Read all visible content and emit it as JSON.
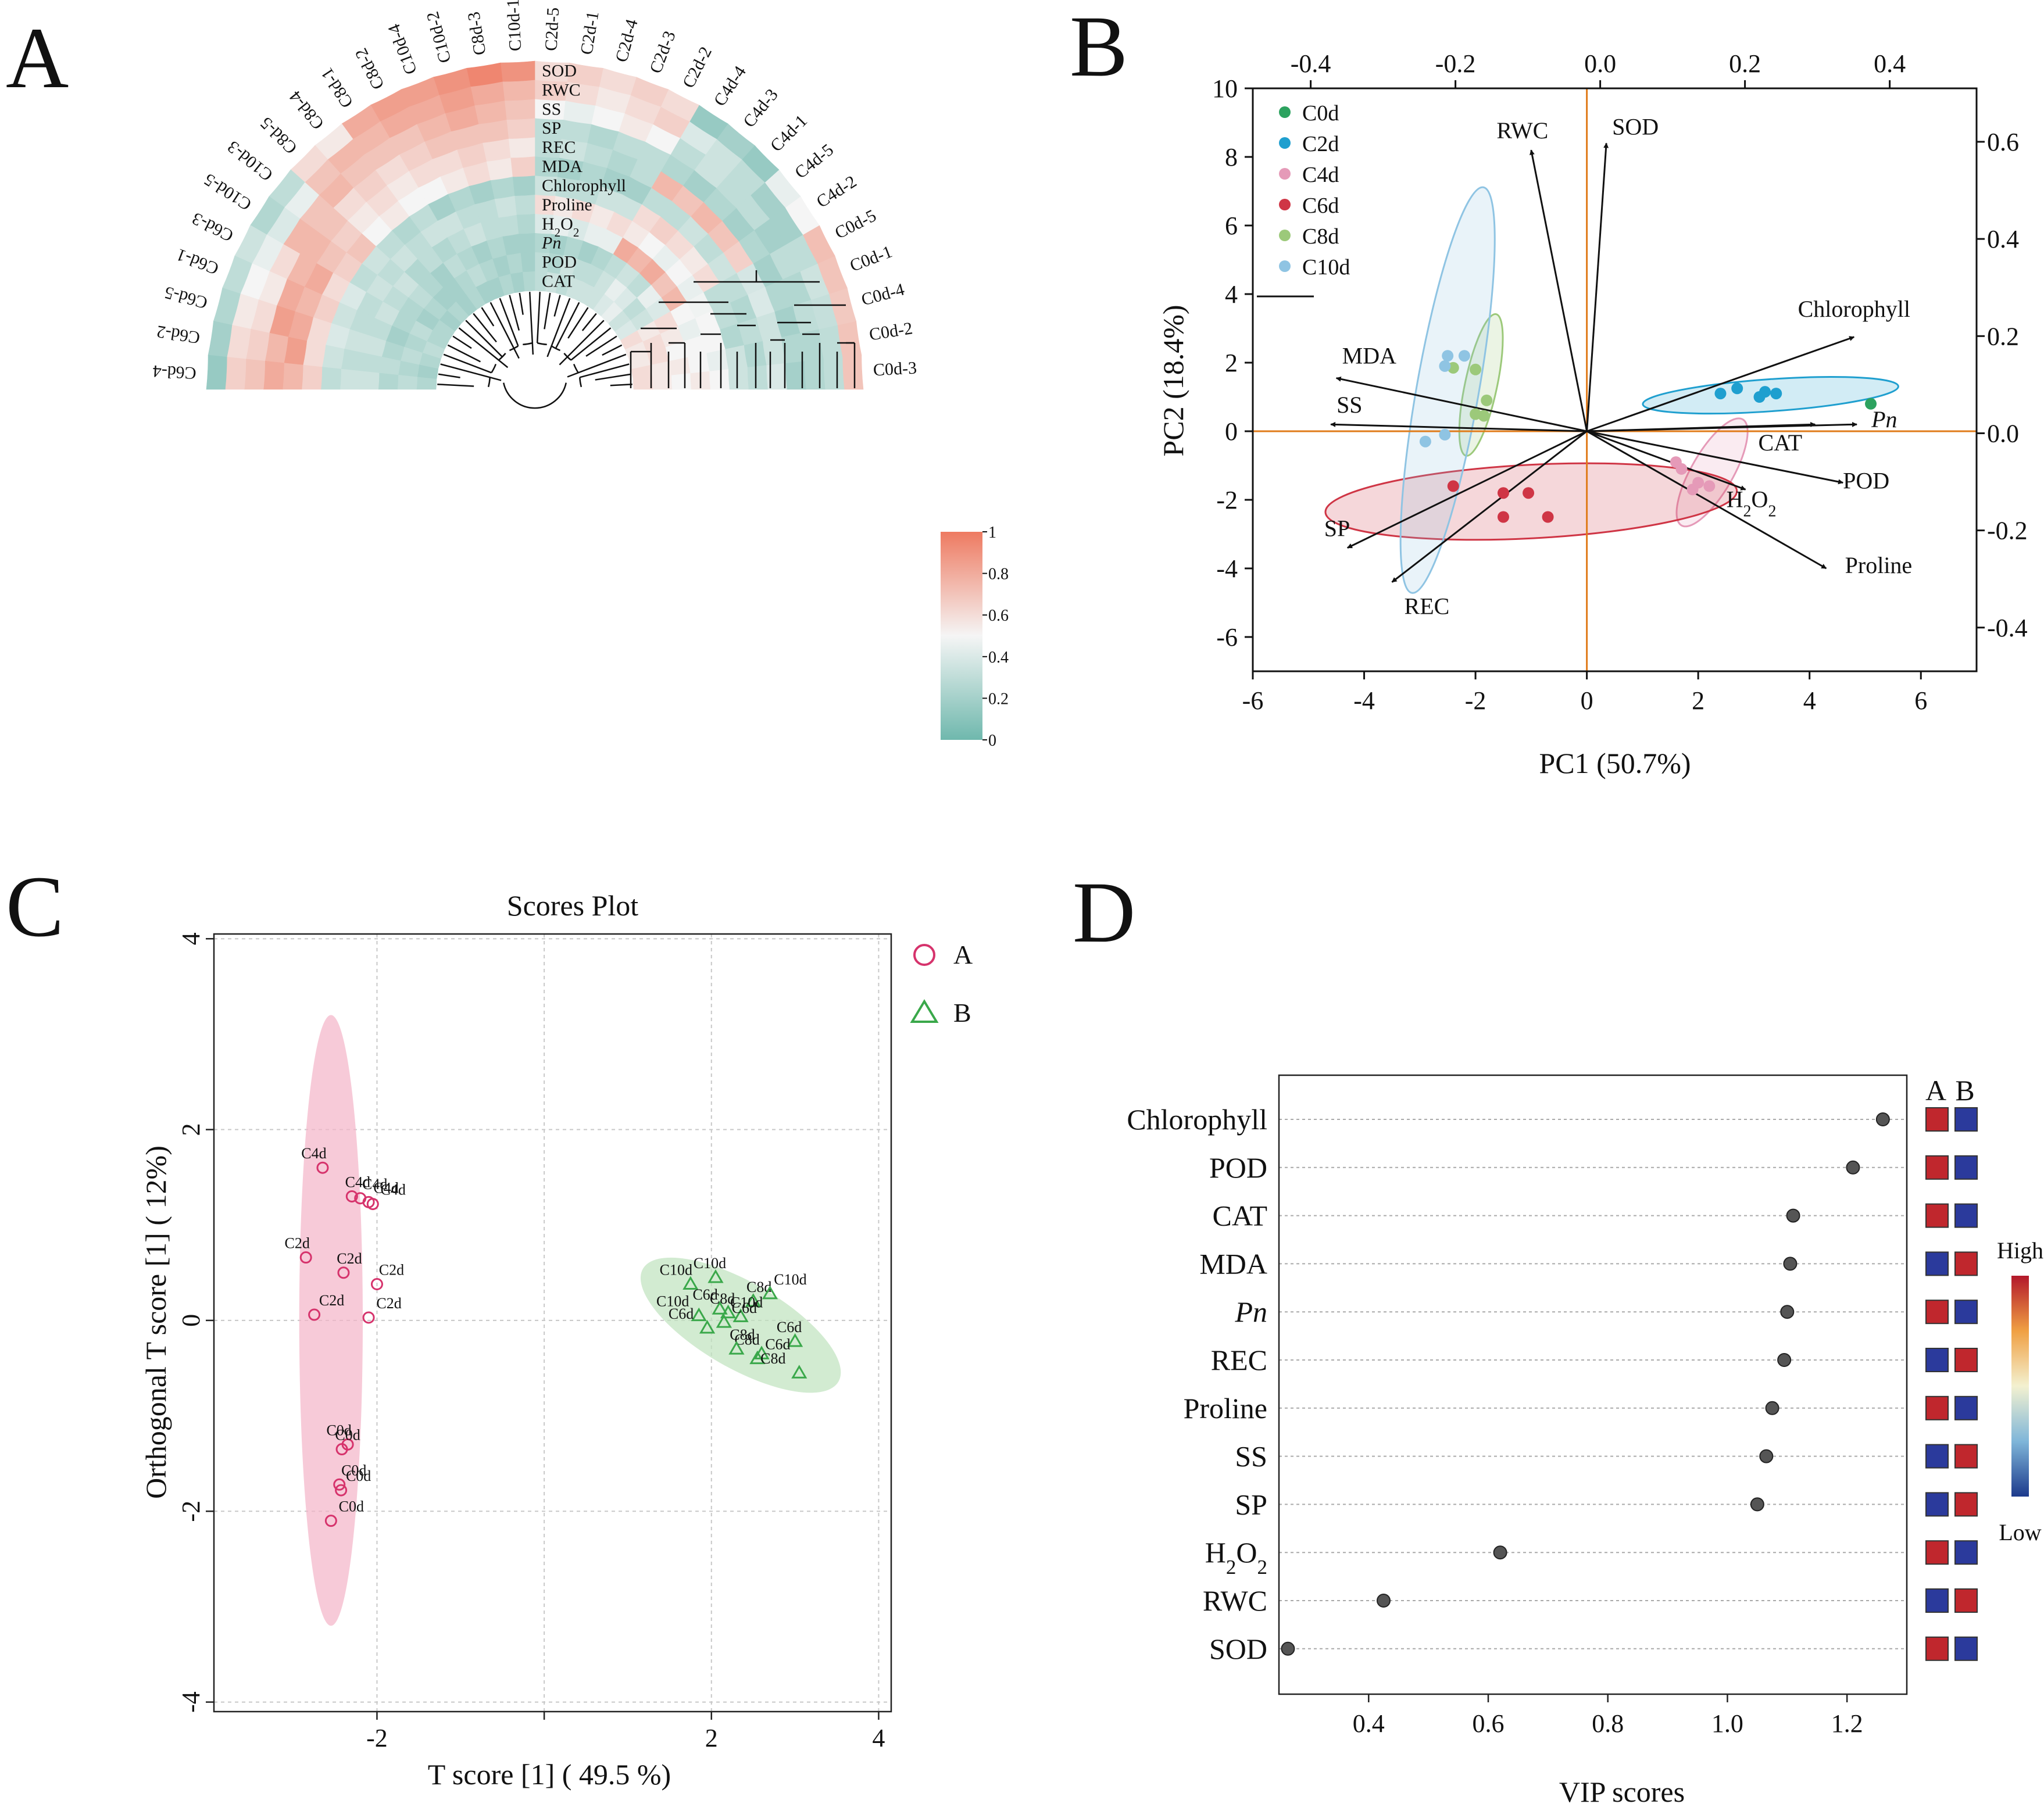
{
  "panels": {
    "A": "A",
    "B": "B",
    "C": "C",
    "D": "D"
  },
  "colors": {
    "heat_low": "#6fb8ad",
    "heat_mid": "#f5f5f5",
    "heat_high": "#ee7a61",
    "C0d": "#2ca25f",
    "C2d": "#1f9fcf",
    "C4d": "#e59ab8",
    "C6d": "#cf3545",
    "C8d": "#9cc97a",
    "C10d": "#8fc4e3",
    "origin_line": "#e07b1a",
    "groupA": "#d6336c",
    "groupB": "#3aa84a",
    "vip_dot": "#555555",
    "vip_red": "#c0272d",
    "vip_blue": "#2b3a9c"
  },
  "chart_data": [
    {
      "type": "heatmap",
      "panel": "A",
      "layout": "circular",
      "variables": [
        "SOD",
        "RWC",
        "SS",
        "SP",
        "REC",
        "MDA",
        "Chlorophyll",
        "Proline",
        "H2O2",
        "Pn",
        "POD",
        "CAT"
      ],
      "variable_labels": [
        {
          "base": "SOD"
        },
        {
          "base": "RWC"
        },
        {
          "base": "SS"
        },
        {
          "base": "SP"
        },
        {
          "base": "REC"
        },
        {
          "base": "MDA"
        },
        {
          "base": "Chlorophyll"
        },
        {
          "base": "Proline"
        },
        {
          "base": "H",
          "sub1": "2",
          "mid": "O",
          "sub2": "2"
        },
        {
          "base": "Pn",
          "italic": true
        },
        {
          "base": "POD"
        },
        {
          "base": "CAT"
        }
      ],
      "samples": [
        "C0d-3",
        "C0d-2",
        "C0d-4",
        "C0d-1",
        "C0d-5",
        "C4d-2",
        "C4d-5",
        "C4d-1",
        "C4d-3",
        "C4d-4",
        "C2d-2",
        "C2d-3",
        "C2d-4",
        "C2d-1",
        "C2d-5",
        "C10d-1",
        "C8d-3",
        "C10d-2",
        "C10d-4",
        "C8d-2",
        "C8d-1",
        "C8d-4",
        "C8d-5",
        "C10d-3",
        "C10d-5",
        "C6d-3",
        "C6d-1",
        "C6d-5",
        "C6d-2",
        "C6d-4"
      ],
      "values": [
        [
          0.7,
          0.3,
          0.25,
          0.2,
          0.4,
          0.3,
          0.35,
          0.5,
          0.55,
          0.5,
          0.55,
          0.6
        ],
        [
          0.7,
          0.3,
          0.25,
          0.25,
          0.35,
          0.25,
          0.35,
          0.45,
          0.5,
          0.55,
          0.55,
          0.6
        ],
        [
          0.68,
          0.32,
          0.3,
          0.2,
          0.35,
          0.3,
          0.25,
          0.5,
          0.5,
          0.5,
          0.6,
          0.55
        ],
        [
          0.7,
          0.35,
          0.25,
          0.25,
          0.4,
          0.25,
          0.3,
          0.5,
          0.45,
          0.55,
          0.6,
          0.55
        ],
        [
          0.72,
          0.3,
          0.3,
          0.2,
          0.38,
          0.3,
          0.3,
          0.48,
          0.5,
          0.6,
          0.55,
          0.6
        ],
        [
          0.5,
          0.2,
          0.2,
          0.25,
          0.65,
          0.35,
          0.6,
          0.45,
          0.75,
          0.4,
          0.35,
          0.4
        ],
        [
          0.45,
          0.2,
          0.3,
          0.2,
          0.7,
          0.3,
          0.55,
          0.5,
          0.7,
          0.45,
          0.3,
          0.35
        ],
        [
          0.15,
          0.3,
          0.3,
          0.25,
          0.75,
          0.35,
          0.6,
          0.45,
          0.8,
          0.3,
          0.4,
          0.45
        ],
        [
          0.2,
          0.35,
          0.35,
          0.2,
          0.7,
          0.3,
          0.65,
          0.5,
          0.75,
          0.35,
          0.45,
          0.4
        ],
        [
          0.15,
          0.4,
          0.3,
          0.25,
          0.75,
          0.3,
          0.6,
          0.55,
          0.8,
          0.3,
          0.35,
          0.35
        ],
        [
          0.6,
          0.65,
          0.5,
          0.3,
          0.3,
          0.2,
          0.35,
          0.6,
          0.45,
          0.25,
          0.3,
          0.35
        ],
        [
          0.65,
          0.6,
          0.55,
          0.3,
          0.25,
          0.2,
          0.35,
          0.55,
          0.45,
          0.2,
          0.3,
          0.35
        ],
        [
          0.6,
          0.55,
          0.5,
          0.25,
          0.3,
          0.25,
          0.3,
          0.6,
          0.4,
          0.25,
          0.35,
          0.3
        ],
        [
          0.65,
          0.6,
          0.45,
          0.3,
          0.35,
          0.2,
          0.3,
          0.55,
          0.45,
          0.2,
          0.25,
          0.35
        ],
        [
          0.6,
          0.65,
          0.5,
          0.3,
          0.3,
          0.25,
          0.35,
          0.6,
          0.4,
          0.25,
          0.3,
          0.3
        ],
        [
          0.9,
          0.75,
          0.7,
          0.65,
          0.55,
          0.65,
          0.2,
          0.3,
          0.25,
          0.2,
          0.2,
          0.25
        ],
        [
          0.95,
          0.8,
          0.75,
          0.7,
          0.6,
          0.55,
          0.25,
          0.35,
          0.3,
          0.2,
          0.25,
          0.2
        ],
        [
          0.9,
          0.85,
          0.8,
          0.7,
          0.65,
          0.6,
          0.2,
          0.3,
          0.3,
          0.25,
          0.2,
          0.25
        ],
        [
          0.85,
          0.8,
          0.75,
          0.7,
          0.6,
          0.55,
          0.25,
          0.3,
          0.35,
          0.2,
          0.25,
          0.2
        ],
        [
          0.85,
          0.8,
          0.7,
          0.65,
          0.6,
          0.5,
          0.2,
          0.35,
          0.3,
          0.25,
          0.3,
          0.2
        ],
        [
          0.8,
          0.75,
          0.7,
          0.6,
          0.55,
          0.5,
          0.3,
          0.35,
          0.25,
          0.3,
          0.25,
          0.25
        ],
        [
          0.55,
          0.75,
          0.7,
          0.65,
          0.6,
          0.55,
          0.25,
          0.3,
          0.3,
          0.2,
          0.2,
          0.2
        ],
        [
          0.6,
          0.7,
          0.75,
          0.6,
          0.55,
          0.5,
          0.3,
          0.35,
          0.25,
          0.25,
          0.2,
          0.25
        ],
        [
          0.3,
          0.45,
          0.7,
          0.7,
          0.65,
          0.7,
          0.35,
          0.3,
          0.35,
          0.3,
          0.25,
          0.2
        ],
        [
          0.25,
          0.4,
          0.75,
          0.75,
          0.7,
          0.65,
          0.3,
          0.35,
          0.3,
          0.25,
          0.2,
          0.25
        ],
        [
          0.35,
          0.45,
          0.6,
          0.75,
          0.8,
          0.6,
          0.4,
          0.3,
          0.35,
          0.25,
          0.3,
          0.25
        ],
        [
          0.3,
          0.5,
          0.55,
          0.8,
          0.75,
          0.65,
          0.35,
          0.3,
          0.3,
          0.2,
          0.25,
          0.3
        ],
        [
          0.25,
          0.55,
          0.6,
          0.85,
          0.8,
          0.6,
          0.4,
          0.35,
          0.35,
          0.25,
          0.3,
          0.25
        ],
        [
          0.2,
          0.6,
          0.65,
          0.75,
          0.85,
          0.6,
          0.35,
          0.3,
          0.3,
          0.3,
          0.25,
          0.2
        ],
        [
          0.15,
          0.65,
          0.7,
          0.8,
          0.75,
          0.65,
          0.3,
          0.35,
          0.35,
          0.25,
          0.3,
          0.25
        ]
      ],
      "legend_ticks": [
        "1",
        "0.8",
        "0.6",
        "0.4",
        "0.2",
        "0"
      ]
    },
    {
      "type": "scatter",
      "panel": "B",
      "subtype": "biplot",
      "xlabel": "PC1 (50.7%)",
      "ylabel": "PC2 (18.4%)",
      "xlim": [
        -6,
        7
      ],
      "ylim": [
        -7,
        10
      ],
      "x_ticks": [
        -6,
        -4,
        -2,
        0,
        2,
        4,
        6
      ],
      "y_ticks": [
        -6,
        -4,
        -2,
        0,
        2,
        4,
        6,
        8,
        10
      ],
      "top_ticks": [
        "-0.4",
        "-0.2",
        "0.0",
        "0.2",
        "0.4"
      ],
      "top_tick_values": [
        -0.4,
        -0.2,
        0.0,
        0.2,
        0.4
      ],
      "top_lim": [
        -0.48,
        0.52
      ],
      "right_ticks": [
        "0.6",
        "0.4",
        "0.2",
        "0.0",
        "-0.2",
        "-0.4"
      ],
      "right_tick_values": [
        0.6,
        0.4,
        0.2,
        0.0,
        -0.2,
        -0.4
      ],
      "right_lim": [
        -0.49,
        0.71
      ],
      "legend": [
        "C0d",
        "C2d",
        "C4d",
        "C6d",
        "C8d",
        "C10d"
      ],
      "groups": [
        {
          "name": "C0d",
          "points": [
            [
              5.1,
              0.8
            ]
          ],
          "ellipse": null
        },
        {
          "name": "C2d",
          "points": [
            [
              2.4,
              1.1
            ],
            [
              2.7,
              1.25
            ],
            [
              3.1,
              1.0
            ],
            [
              3.2,
              1.15
            ],
            [
              3.4,
              1.1
            ]
          ],
          "ellipse": {
            "cx": 3.3,
            "cy": 1.05,
            "rx": 4.6,
            "ry": 0.85,
            "angle": -4
          }
        },
        {
          "name": "C4d",
          "points": [
            [
              1.6,
              -0.9
            ],
            [
              1.7,
              -1.1
            ],
            [
              1.9,
              -1.7
            ],
            [
              2.0,
              -1.5
            ],
            [
              2.2,
              -1.6
            ]
          ],
          "ellipse": {
            "cx": 2.25,
            "cy": -1.2,
            "rx": 2.2,
            "ry": 1.1,
            "angle": -60
          }
        },
        {
          "name": "C6d",
          "points": [
            [
              -2.4,
              -1.6
            ],
            [
              -1.5,
              -1.8
            ],
            [
              -1.5,
              -2.5
            ],
            [
              -1.05,
              -1.8
            ],
            [
              -0.7,
              -2.5
            ]
          ],
          "ellipse": {
            "cx": -1.0,
            "cy": -2.05,
            "rx": 7.4,
            "ry": 1.95,
            "angle": -3
          }
        },
        {
          "name": "C8d",
          "points": [
            [
              -2.4,
              1.85
            ],
            [
              -2.0,
              1.8
            ],
            [
              -1.8,
              0.9
            ],
            [
              -2.0,
              0.5
            ],
            [
              -1.85,
              0.45
            ]
          ],
          "ellipse": {
            "cx": -1.9,
            "cy": 1.35,
            "rx": 2.6,
            "ry": 0.85,
            "angle": -78
          }
        },
        {
          "name": "C10d",
          "points": [
            [
              -2.5,
              2.2
            ],
            [
              -2.2,
              2.2
            ],
            [
              -2.55,
              1.9
            ],
            [
              -2.9,
              -0.3
            ],
            [
              -2.55,
              -0.1
            ]
          ],
          "ellipse": {
            "cx": -2.5,
            "cy": 1.2,
            "rx": 7.4,
            "ry": 1.65,
            "angle": -80
          }
        }
      ],
      "vectors": [
        {
          "label": "RWC",
          "x": -1.0,
          "y": 8.2
        },
        {
          "label": "SOD",
          "x": 0.35,
          "y": 8.4
        },
        {
          "label": "Chlorophyll",
          "x": 4.8,
          "y": 2.75
        },
        {
          "label": "Pn",
          "x": 4.85,
          "y": 0.2,
          "italic": true
        },
        {
          "label": "CAT",
          "x": 4.1,
          "y": 0.2
        },
        {
          "label": "POD",
          "x": 4.6,
          "y": -1.5
        },
        {
          "label": "H2O2",
          "x": 2.85,
          "y": -1.7
        },
        {
          "label": "Proline",
          "x": 4.3,
          "y": -4.0
        },
        {
          "label": "MDA",
          "x": -4.5,
          "y": 1.55
        },
        {
          "label": "SS",
          "x": -4.6,
          "y": 0.2
        },
        {
          "label": "SP",
          "x": -4.3,
          "y": -3.4
        },
        {
          "label": "REC",
          "x": -3.5,
          "y": -4.4
        }
      ]
    },
    {
      "type": "scatter",
      "panel": "C",
      "title": "Scores Plot",
      "xlabel": "T score [1] ( 49.5 %)",
      "ylabel": "Orthogonal T score [1] ( 12%)",
      "xlim": [
        -3.95,
        4.15
      ],
      "ylim": [
        -4.1,
        4.05
      ],
      "x_ticks": [
        -2,
        0,
        2,
        4
      ],
      "x_tick_labels": [
        "-2",
        "",
        "2",
        "4"
      ],
      "y_ticks": [
        -4,
        -2,
        0,
        2,
        4
      ],
      "legend": [
        "A",
        "B"
      ],
      "groups": [
        {
          "name": "A",
          "marker": "circle",
          "ellipse": {
            "cx": -2.55,
            "cy": 0.0,
            "rx": 0.38,
            "ry": 3.2
          },
          "points": [
            {
              "x": -2.65,
              "y": 1.6,
              "label": "C4d"
            },
            {
              "x": -2.3,
              "y": 1.3,
              "label": "C4d"
            },
            {
              "x": -2.2,
              "y": 1.28,
              "label": "C4d"
            },
            {
              "x": -2.1,
              "y": 1.24,
              "label": "C4d"
            },
            {
              "x": -2.05,
              "y": 1.22,
              "label": "C4d"
            },
            {
              "x": -2.85,
              "y": 0.66,
              "label": "C2d"
            },
            {
              "x": -2.4,
              "y": 0.5,
              "label": "C2d"
            },
            {
              "x": -2.0,
              "y": 0.38,
              "label": "C2d"
            },
            {
              "x": -2.75,
              "y": 0.06,
              "label": "C2d"
            },
            {
              "x": -2.1,
              "y": 0.03,
              "label": "C2d"
            },
            {
              "x": -2.35,
              "y": -1.3,
              "label": "C0d"
            },
            {
              "x": -2.42,
              "y": -1.35,
              "label": "C0d"
            },
            {
              "x": -2.45,
              "y": -1.72,
              "label": "C0d"
            },
            {
              "x": -2.43,
              "y": -1.78,
              "label": "C0d"
            },
            {
              "x": -2.55,
              "y": -2.1,
              "label": "C0d"
            }
          ]
        },
        {
          "name": "B",
          "marker": "triangle",
          "ellipse": {
            "cx": 2.35,
            "cy": -0.05,
            "rx": 1.35,
            "ry": 0.45,
            "angle": 30
          },
          "points": [
            {
              "x": 1.75,
              "y": 0.38,
              "label": "C10d"
            },
            {
              "x": 2.05,
              "y": 0.45,
              "label": "C10d"
            },
            {
              "x": 2.5,
              "y": 0.2,
              "label": "C8d"
            },
            {
              "x": 2.7,
              "y": 0.28,
              "label": "C10d"
            },
            {
              "x": 1.85,
              "y": 0.05,
              "label": "C10d"
            },
            {
              "x": 2.1,
              "y": 0.12,
              "label": "C6d"
            },
            {
              "x": 2.2,
              "y": 0.08,
              "label": "C8d"
            },
            {
              "x": 2.35,
              "y": 0.04,
              "label": "C10d"
            },
            {
              "x": 2.15,
              "y": -0.02,
              "label": "C6d"
            },
            {
              "x": 1.95,
              "y": -0.08,
              "label": "C6d"
            },
            {
              "x": 2.6,
              "y": -0.35,
              "label": "C8d"
            },
            {
              "x": 3.0,
              "y": -0.22,
              "label": "C6d"
            },
            {
              "x": 2.3,
              "y": -0.3,
              "label": "C8d"
            },
            {
              "x": 2.55,
              "y": -0.4,
              "label": "C6d"
            },
            {
              "x": 3.05,
              "y": -0.55,
              "label": "C8d"
            }
          ]
        }
      ]
    },
    {
      "type": "scatter",
      "panel": "D",
      "subtype": "dotplot",
      "xlabel": "VIP scores",
      "xlim": [
        0.25,
        1.3
      ],
      "x_ticks": [
        0.4,
        0.6,
        0.8,
        1.0,
        1.2
      ],
      "x_tick_labels": [
        "0.4",
        "0.6",
        "0.8",
        "1.0",
        "1.2"
      ],
      "heat_headers": [
        "A",
        "B"
      ],
      "legend_high": "High",
      "legend_low": "Low",
      "items": [
        {
          "label": "Chlorophyll",
          "vip": 1.26,
          "A": "high",
          "B": "low"
        },
        {
          "label": "POD",
          "vip": 1.21,
          "A": "high",
          "B": "low"
        },
        {
          "label": "CAT",
          "vip": 1.11,
          "A": "high",
          "B": "low"
        },
        {
          "label": "MDA",
          "vip": 1.105,
          "A": "low",
          "B": "high"
        },
        {
          "label": "Pn",
          "vip": 1.1,
          "A": "high",
          "B": "low",
          "italic": true
        },
        {
          "label": "REC",
          "vip": 1.095,
          "A": "low",
          "B": "high"
        },
        {
          "label": "Proline",
          "vip": 1.075,
          "A": "high",
          "B": "low"
        },
        {
          "label": "SS",
          "vip": 1.065,
          "A": "low",
          "B": "high"
        },
        {
          "label": "SP",
          "vip": 1.05,
          "A": "low",
          "B": "high"
        },
        {
          "label": "H2O2",
          "vip": 0.62,
          "A": "high",
          "B": "low"
        },
        {
          "label": "RWC",
          "vip": 0.425,
          "A": "low",
          "B": "high"
        },
        {
          "label": "SOD",
          "vip": 0.265,
          "A": "high",
          "B": "low"
        }
      ]
    }
  ]
}
